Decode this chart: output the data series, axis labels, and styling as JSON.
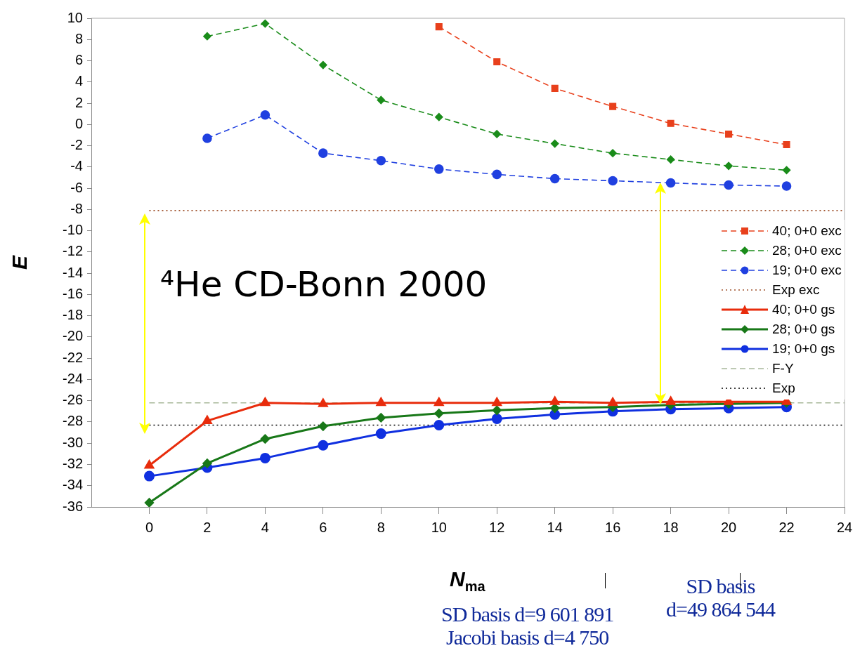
{
  "chart_data": {
    "type": "line",
    "xlabel": "N$_{ma}$",
    "ylabel": "E",
    "xlim": [
      -2,
      24
    ],
    "xticks": [
      0,
      2,
      4,
      6,
      8,
      10,
      12,
      14,
      16,
      18,
      20,
      22,
      24
    ],
    "ylim": [
      -36,
      10
    ],
    "yticks": [
      -36,
      -34,
      -32,
      -30,
      -28,
      -26,
      -24,
      -22,
      -20,
      -18,
      -16,
      -14,
      -12,
      -10,
      -8,
      -6,
      -4,
      -2,
      0,
      2,
      4,
      6,
      8,
      10
    ],
    "grid": false,
    "legend": "right",
    "series": [
      {
        "name": "40; 0+0 exc",
        "color": "#e8401c",
        "marker": "square",
        "line_style": "dashed",
        "x": [
          10,
          12,
          14,
          16,
          18,
          20,
          22
        ],
        "values": [
          9.2,
          5.9,
          3.4,
          1.7,
          0.1,
          -0.9,
          -1.9
        ]
      },
      {
        "name": "28; 0+0 exc",
        "color": "#1a8c1a",
        "marker": "diamond",
        "line_style": "dashed",
        "x": [
          2,
          4,
          6,
          8,
          10,
          12,
          14,
          16,
          18,
          20,
          22
        ],
        "values": [
          8.3,
          9.5,
          5.6,
          2.3,
          0.7,
          -0.9,
          -1.8,
          -2.7,
          -3.3,
          -3.9,
          -4.3
        ]
      },
      {
        "name": "19; 0+0 exc",
        "color": "#2040e0",
        "marker": "circle",
        "line_style": "dashed",
        "x": [
          2,
          4,
          6,
          8,
          10,
          12,
          14,
          16,
          18,
          20,
          22
        ],
        "values": [
          -1.3,
          0.9,
          -2.7,
          -3.4,
          -4.2,
          -4.7,
          -5.1,
          -5.3,
          -5.5,
          -5.7,
          -5.8
        ]
      },
      {
        "name": "Exp exc",
        "color": "#a0522d",
        "marker": "none",
        "line_style": "dotted",
        "x": [
          0,
          24
        ],
        "values": [
          -8.1,
          -8.1
        ]
      },
      {
        "name": "40; 0+0 gs",
        "color": "#e82c0c",
        "marker": "triangle",
        "line_style": "solid",
        "x": [
          0,
          2,
          4,
          6,
          8,
          10,
          12,
          14,
          16,
          18,
          20,
          22
        ],
        "values": [
          -32.1,
          -27.9,
          -26.2,
          -26.3,
          -26.2,
          -26.2,
          -26.2,
          -26.1,
          -26.2,
          -26.1,
          -26.1,
          -26.1
        ]
      },
      {
        "name": "28; 0+0 gs",
        "color": "#187818",
        "marker": "diamond",
        "line_style": "solid",
        "x": [
          0,
          2,
          4,
          6,
          8,
          10,
          12,
          14,
          16,
          18,
          20,
          22
        ],
        "values": [
          -35.6,
          -31.9,
          -29.6,
          -28.4,
          -27.6,
          -27.2,
          -26.9,
          -26.7,
          -26.6,
          -26.4,
          -26.3,
          -26.2
        ]
      },
      {
        "name": "19; 0+0 gs",
        "color": "#1030e0",
        "marker": "circle",
        "line_style": "solid",
        "x": [
          0,
          2,
          4,
          6,
          8,
          10,
          12,
          14,
          16,
          18,
          20,
          22
        ],
        "values": [
          -33.1,
          -32.3,
          -31.4,
          -30.2,
          -29.1,
          -28.3,
          -27.7,
          -27.3,
          -27.0,
          -26.8,
          -26.7,
          -26.6
        ]
      },
      {
        "name": "F-Y",
        "color": "#a8b89a",
        "marker": "none",
        "line_style": "dashed",
        "x": [
          0,
          24
        ],
        "values": [
          -26.2,
          -26.2
        ]
      },
      {
        "name": "Exp",
        "color": "#000000",
        "marker": "none",
        "line_style": "dotted",
        "x": [
          0,
          24
        ],
        "values": [
          -28.3,
          -28.3
        ]
      }
    ],
    "annotations": [
      "⁴He  CD-Bonn 2000",
      "SD basis d=9 601 891\nJacobi basis d=4 750",
      "SD basis\nd=49 864 544"
    ]
  }
}
